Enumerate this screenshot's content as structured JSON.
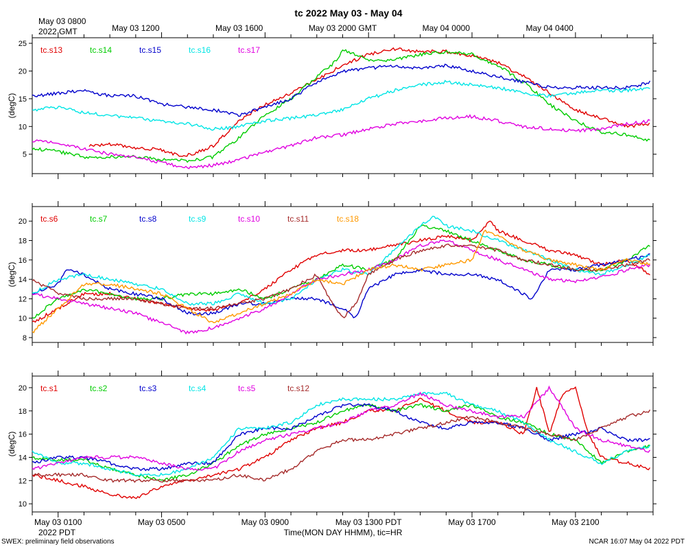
{
  "title": "tc 2022 May 03 - May 04",
  "top_axis": {
    "start_label": "May 03 0800",
    "year_label": "2022 GMT",
    "ticks": [
      {
        "t": 4,
        "label": "May 03 1200"
      },
      {
        "t": 8,
        "label": "May 03 1600"
      },
      {
        "t": 12,
        "label": "May 03 2000 GMT"
      },
      {
        "t": 16,
        "label": "May 04 0000"
      },
      {
        "t": 20,
        "label": "May 04 0400"
      }
    ]
  },
  "bottom_axis": {
    "year_label": "2022 PDT",
    "xlabel": "Time(MON DAY HHMM), tic=HR",
    "ticks": [
      {
        "t": 1,
        "label": "May 03 0100"
      },
      {
        "t": 5,
        "label": "May 03 0500"
      },
      {
        "t": 9,
        "label": "May 03 0900"
      },
      {
        "t": 13,
        "label": "May 03 1300 PDT"
      },
      {
        "t": 17,
        "label": "May 03 1700"
      },
      {
        "t": 21,
        "label": "May 03 2100"
      }
    ]
  },
  "footer": {
    "left": "SWEX: preliminary field observations",
    "right": "NCAR 16:07 May 04 2022 PDT"
  },
  "colors": {
    "red": "#e00000",
    "green": "#00cc00",
    "blue": "#0000cc",
    "cyan": "#00e5e5",
    "magenta": "#e000e0",
    "brown": "#a52a2a",
    "orange": "#ff9900"
  },
  "chart_data": [
    {
      "type": "line",
      "ylabel": "(degC)",
      "xlim": [
        0,
        24
      ],
      "ylim": [
        1.5,
        26
      ],
      "yticks": [
        5,
        10,
        15,
        20,
        25
      ],
      "series": [
        {
          "name": "tc.s13",
          "color": "red",
          "x": [
            2.2,
            3,
            4,
            5,
            5.8,
            6.3,
            7,
            8,
            9,
            10,
            11,
            12,
            13,
            14,
            15,
            16,
            17,
            18,
            19,
            20,
            21,
            22,
            23,
            23.9
          ],
          "y": [
            6.5,
            6.8,
            6.2,
            5.8,
            4.6,
            5.2,
            6.5,
            11,
            14,
            16,
            18.5,
            21,
            23,
            24,
            23.5,
            23.5,
            22.8,
            21.5,
            19,
            16,
            13,
            11.5,
            10,
            10.5
          ]
        },
        {
          "name": "tc.s14",
          "color": "green",
          "x": [
            0,
            1,
            2,
            3,
            4,
            5,
            6,
            7,
            8,
            9,
            10,
            11,
            11.8,
            12,
            13,
            14,
            15,
            16,
            17,
            18,
            19,
            20,
            21,
            22,
            23,
            23.9
          ],
          "y": [
            6,
            5.5,
            4.5,
            4.5,
            4.6,
            4,
            3.8,
            4.5,
            8,
            12,
            15,
            19,
            22,
            23.8,
            22,
            22,
            23,
            23.5,
            23,
            21,
            18,
            14,
            11,
            9,
            8.5,
            7.5
          ]
        },
        {
          "name": "tc.s15",
          "color": "blue",
          "x": [
            0,
            1,
            2,
            3,
            4,
            5,
            6,
            7,
            8,
            9,
            10,
            11,
            12,
            13,
            14,
            15,
            16,
            17,
            18,
            19,
            20,
            21,
            22,
            23,
            23.9
          ],
          "y": [
            15.5,
            16,
            16.5,
            15.5,
            15.5,
            14,
            13.5,
            13,
            12,
            13.5,
            15,
            18,
            20,
            20.5,
            21,
            20.5,
            21,
            20,
            19,
            18,
            17,
            17,
            17,
            17,
            18
          ]
        },
        {
          "name": "tc.s16",
          "color": "cyan",
          "x": [
            0,
            1,
            2,
            3,
            4,
            5,
            6,
            7,
            8,
            9,
            10,
            11,
            12,
            13,
            14,
            15,
            16,
            17,
            18,
            19,
            20,
            21,
            22,
            23,
            23.9
          ],
          "y": [
            13,
            13.5,
            12.5,
            12,
            11.5,
            11,
            10.5,
            9.5,
            10,
            11,
            11.5,
            12,
            13,
            15,
            16.5,
            17.5,
            18,
            17.5,
            17,
            16,
            15.5,
            16,
            16.5,
            16.5,
            17
          ]
        },
        {
          "name": "tc.s17",
          "color": "magenta",
          "x": [
            0,
            1,
            2,
            3,
            4,
            5,
            6,
            7,
            8,
            9,
            10,
            11,
            12,
            13,
            14,
            15,
            16,
            17,
            18,
            19,
            20,
            21,
            22,
            23,
            23.9
          ],
          "y": [
            7.5,
            7,
            6,
            5,
            4.5,
            3.5,
            2.5,
            3,
            4,
            5.5,
            6.5,
            8,
            8.5,
            9.5,
            10.5,
            11,
            11.5,
            11.8,
            11,
            10,
            9.5,
            9.2,
            9.5,
            10.5,
            11
          ]
        }
      ]
    },
    {
      "type": "line",
      "ylabel": "(degC)",
      "xlim": [
        0,
        24
      ],
      "ylim": [
        7.5,
        21.5
      ],
      "yticks": [
        8,
        10,
        12,
        14,
        16,
        18,
        20
      ],
      "series": [
        {
          "name": "tc.s6",
          "color": "red",
          "x": [
            0,
            1,
            2,
            3,
            4,
            5,
            6,
            7,
            8,
            9,
            10,
            11,
            12,
            13,
            14,
            15,
            16,
            17,
            17.7,
            18,
            19,
            20,
            21,
            22,
            23,
            23.9
          ],
          "y": [
            9.5,
            11,
            12.5,
            12.5,
            12,
            11.5,
            11,
            10.8,
            11.5,
            13,
            15,
            16.5,
            17,
            17,
            17.5,
            18,
            18.5,
            18,
            20,
            19,
            18,
            17,
            16.5,
            15.5,
            16,
            14.5
          ]
        },
        {
          "name": "tc.s7",
          "color": "green",
          "x": [
            0,
            1,
            2,
            3,
            4,
            5,
            6,
            7,
            8,
            9,
            10,
            11,
            12,
            13,
            14,
            15,
            16,
            17,
            18,
            19,
            20,
            21,
            22,
            23,
            23.9
          ],
          "y": [
            10,
            12,
            13,
            12.5,
            12,
            12,
            12.5,
            12.5,
            13,
            12,
            13,
            14,
            15.5,
            15,
            16,
            19.5,
            19,
            18,
            17,
            16,
            15.5,
            15,
            15,
            16,
            17.5
          ]
        },
        {
          "name": "tc.s8",
          "color": "blue",
          "x": [
            0,
            1,
            1.3,
            2,
            3,
            4,
            5,
            6,
            7,
            8,
            9,
            10,
            11,
            12,
            12.5,
            13,
            14,
            15,
            16,
            17,
            18,
            19,
            19.3,
            20,
            21,
            22,
            23,
            23.9
          ],
          "y": [
            12.5,
            13.5,
            15,
            14.5,
            13,
            12.5,
            12,
            10.5,
            10.5,
            11.5,
            11.5,
            12,
            12,
            11,
            10,
            13,
            14.5,
            15,
            14.5,
            14.5,
            14,
            12.5,
            12,
            15,
            15,
            15.5,
            16,
            16.5
          ]
        },
        {
          "name": "tc.s9",
          "color": "cyan",
          "x": [
            0,
            1,
            2,
            3,
            4,
            5,
            6,
            7,
            8,
            9,
            10,
            11,
            12,
            13,
            14,
            15,
            15.5,
            16,
            17,
            18,
            19,
            20,
            21,
            22,
            23,
            23.9
          ],
          "y": [
            12.5,
            14,
            14.5,
            14,
            13.5,
            13,
            11.5,
            11.5,
            12.5,
            11.5,
            12,
            14,
            15,
            14.5,
            17,
            19.5,
            20.5,
            19.5,
            19,
            18,
            17,
            16,
            15,
            14.5,
            15.5,
            16.5
          ]
        },
        {
          "name": "tc.s10",
          "color": "magenta",
          "x": [
            0,
            1,
            2,
            3,
            4,
            5,
            6,
            7,
            8,
            9,
            10,
            11,
            12,
            13,
            14,
            15,
            16,
            17,
            18,
            19,
            20,
            21,
            22,
            23,
            23.9
          ],
          "y": [
            12.5,
            12,
            11.5,
            11,
            10.5,
            9.5,
            8.5,
            9,
            10,
            11,
            12.5,
            14,
            14.5,
            15,
            16,
            17.5,
            18,
            17,
            16,
            15,
            14,
            13.8,
            14.2,
            15,
            15.5
          ]
        },
        {
          "name": "tc.s11",
          "color": "brown",
          "x": [
            0,
            1,
            2,
            3,
            4,
            5,
            6,
            7,
            8,
            9,
            10,
            11,
            11.5,
            12,
            12.5,
            13,
            14,
            15,
            16,
            17,
            18,
            19,
            20,
            21,
            22,
            23,
            23.9
          ],
          "y": [
            14,
            12.5,
            12,
            12,
            12,
            11.5,
            11,
            11,
            11.5,
            12,
            13,
            14.5,
            12,
            10,
            11.5,
            14.5,
            16,
            17,
            17.5,
            17.5,
            17,
            16,
            15.5,
            15,
            15,
            15.5,
            16
          ]
        },
        {
          "name": "tc.s18",
          "color": "orange",
          "x": [
            0,
            1,
            2,
            3,
            4,
            5,
            6,
            7,
            8,
            9,
            10,
            11,
            12,
            13,
            14,
            15,
            16,
            17,
            17.5,
            18,
            19,
            20,
            21,
            22,
            23,
            23.9
          ],
          "y": [
            8.5,
            11,
            13.5,
            13.5,
            13,
            12.5,
            11,
            9.5,
            10.5,
            11.5,
            12.5,
            14,
            13.5,
            15,
            15.5,
            15,
            15.5,
            16,
            19,
            18.5,
            17,
            16,
            15.5,
            15,
            16,
            15.5
          ]
        }
      ]
    },
    {
      "type": "line",
      "ylabel": "(degC)",
      "xlim": [
        0,
        24
      ],
      "ylim": [
        9.3,
        21
      ],
      "yticks": [
        10,
        12,
        14,
        16,
        18,
        20
      ],
      "series": [
        {
          "name": "tc.s1",
          "color": "red",
          "x": [
            0,
            1,
            2,
            3,
            4,
            5,
            6,
            7,
            8,
            9,
            10,
            11,
            12,
            13,
            14,
            15,
            16,
            17,
            18,
            19,
            19.5,
            20,
            20.5,
            21,
            21.5,
            22,
            23,
            23.9
          ],
          "y": [
            12.5,
            12,
            11.5,
            10.8,
            10.5,
            11.5,
            12,
            12.5,
            13,
            14,
            15.5,
            16.5,
            17,
            18,
            18,
            19,
            18,
            17,
            17,
            16,
            20,
            16,
            19.5,
            20,
            16,
            14,
            13.5,
            13
          ]
        },
        {
          "name": "tc.s2",
          "color": "green",
          "x": [
            0,
            1,
            2,
            3,
            4,
            5,
            6,
            7,
            8,
            9,
            10,
            11,
            12,
            13,
            14,
            15,
            16,
            17,
            18,
            19,
            20,
            21,
            22,
            23,
            23.9
          ],
          "y": [
            14,
            13.8,
            13.8,
            13,
            12.5,
            12,
            12.5,
            13.5,
            15,
            16,
            16.5,
            17,
            18,
            18.5,
            18,
            18.5,
            18,
            18.5,
            17.5,
            17,
            16,
            15.5,
            13.5,
            14.5,
            15
          ]
        },
        {
          "name": "tc.s3",
          "color": "blue",
          "x": [
            0,
            1,
            2,
            3,
            4,
            5,
            6,
            7,
            8,
            9,
            10,
            11,
            12,
            13,
            14,
            15,
            16,
            17,
            18,
            19,
            20,
            21,
            22,
            23,
            23.9
          ],
          "y": [
            13.5,
            14,
            14,
            13.5,
            13,
            13,
            13.5,
            13.5,
            16,
            16.5,
            16.5,
            17.5,
            18.5,
            18.5,
            18,
            17,
            16.5,
            17,
            17,
            16.5,
            15.5,
            16,
            16.5,
            15.5,
            15.5
          ]
        },
        {
          "name": "tc.s4",
          "color": "cyan",
          "x": [
            0,
            1,
            2,
            3,
            4,
            5,
            6,
            7,
            8,
            9,
            10,
            11,
            12,
            13,
            14,
            15,
            16,
            17,
            18,
            19,
            20,
            21,
            22,
            23,
            23.9
          ],
          "y": [
            14.5,
            13.5,
            13.5,
            13,
            12.5,
            12.5,
            13,
            14,
            16.5,
            16.5,
            17,
            18.5,
            19,
            19,
            19,
            19.5,
            19.5,
            18.5,
            18,
            17,
            15.5,
            14.5,
            13.5,
            14.5,
            15
          ]
        },
        {
          "name": "tc.s5",
          "color": "magenta",
          "x": [
            0,
            1,
            2,
            3,
            4,
            5,
            6,
            7,
            8,
            9,
            10,
            11,
            12,
            13,
            14,
            15,
            16,
            17,
            18,
            19,
            20,
            21,
            22,
            23,
            23.9
          ],
          "y": [
            13,
            13.5,
            14,
            14,
            14,
            13.5,
            13,
            13,
            14.5,
            15.5,
            16,
            16.5,
            17,
            18,
            18.5,
            19.5,
            18.5,
            18,
            17.5,
            17.5,
            20,
            16.5,
            15.5,
            15,
            14.5
          ]
        },
        {
          "name": "tc.s12",
          "color": "brown",
          "x": [
            0,
            1,
            2,
            3,
            4,
            5,
            6,
            7,
            8,
            9,
            10,
            11,
            12,
            13,
            14,
            15,
            16,
            17,
            18,
            19,
            20,
            21,
            22,
            23,
            23.9
          ],
          "y": [
            12.5,
            12.5,
            12.5,
            12,
            12,
            12,
            12,
            12,
            12.5,
            12,
            13,
            14.5,
            15.5,
            15.5,
            16,
            16.5,
            17,
            17.5,
            17,
            16.5,
            16,
            15.5,
            16.5,
            17.5,
            18
          ]
        }
      ]
    }
  ]
}
